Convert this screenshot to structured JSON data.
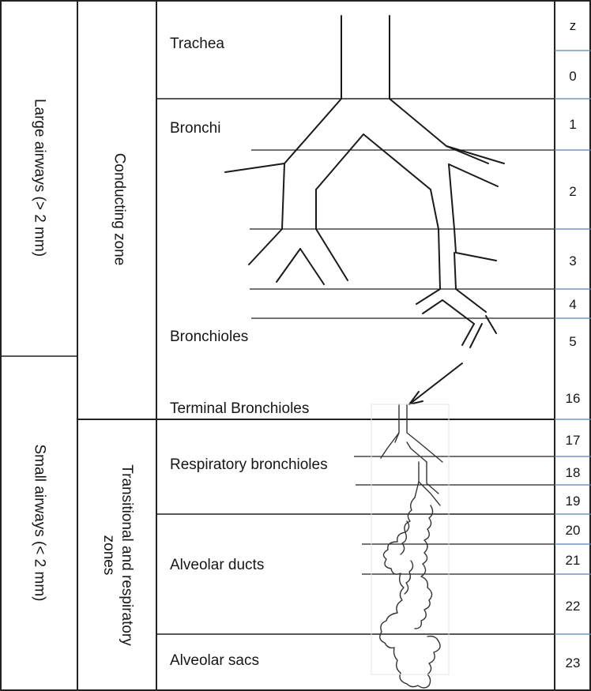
{
  "columns": {
    "size_large": "Large airways (> 2 mm)",
    "size_small": "Small airways (< 2 mm)",
    "zone_conducting": "Conducting zone",
    "zone_transitional_line1": "Transitional and respiratory",
    "zone_transitional_line2": "zones"
  },
  "structures": {
    "trachea": "Trachea",
    "bronchi": "Bronchi",
    "bronchioles": "Bronchioles",
    "terminal_bronchioles": "Terminal Bronchioles",
    "respiratory_bronchioles": "Respiratory bronchioles",
    "alveolar_ducts": "Alveolar ducts",
    "alveolar_sacs": "Alveolar sacs"
  },
  "generations": {
    "header": "z",
    "values": [
      "0",
      "1",
      "2",
      "3",
      "4",
      "5",
      "16",
      "17",
      "18",
      "19",
      "20",
      "21",
      "22",
      "23"
    ]
  }
}
